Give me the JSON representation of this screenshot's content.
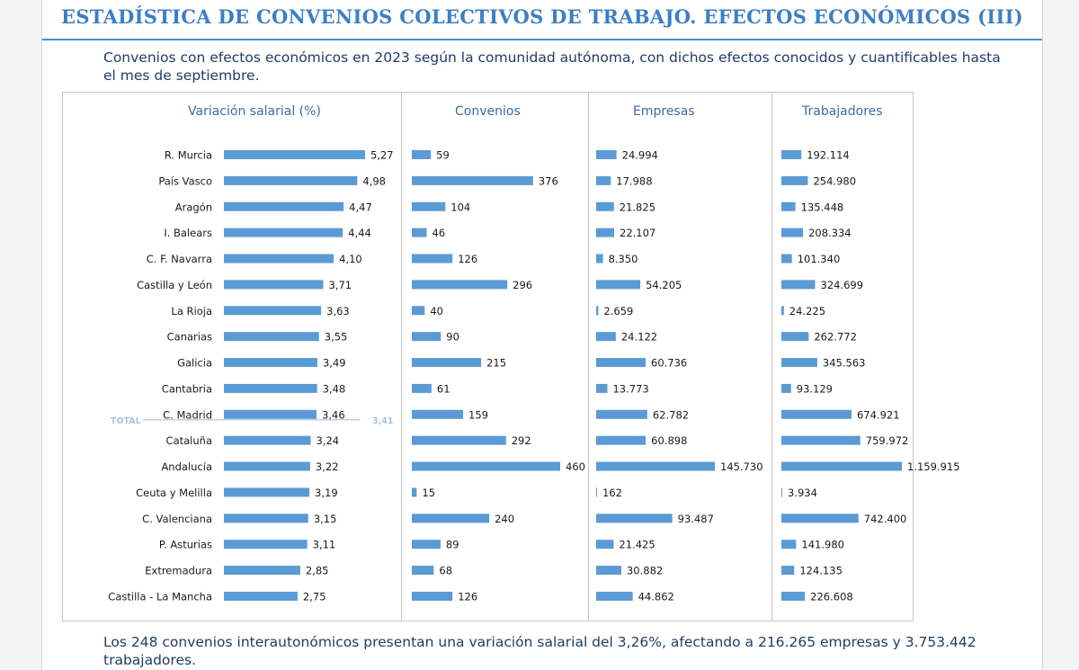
{
  "header": {
    "title": "ESTADÍSTICA DE CONVENIOS COLECTIVOS DE TRABAJO. EFECTOS ECONÓMICOS (III)",
    "subtitle": "Convenios con efectos económicos en 2023 según la comunidad autónoma, con dichos efectos conocidos y cuantificables hasta el mes de septiembre."
  },
  "footnote": "Los 248 convenios interautonómicos presentan una variación salarial del 3,26%, afectando a 216.265 empresas y 3.753.442 trabajadores.",
  "colors": {
    "bar": "#5b9bd5",
    "title": "#3b7fc4",
    "panel_title": "#3b6d9e",
    "total_line": "#a9c4e0",
    "text": "#1f3d66"
  },
  "chart_data": {
    "type": "bar",
    "orientation": "horizontal",
    "grid": false,
    "categories": [
      "R. Murcia",
      "País Vasco",
      "Aragón",
      "I. Balears",
      "C. F. Navarra",
      "Castilla y León",
      "La Rioja",
      "Canarias",
      "Galicia",
      "Cantabria",
      "C. Madrid",
      "Cataluña",
      "Andalucía",
      "Ceuta y Melilla",
      "C. Valenciana",
      "P. Asturias",
      "Extremadura",
      "Castilla - La Mancha"
    ],
    "series": [
      {
        "name": "Variación salarial (%)",
        "values": [
          5.27,
          4.98,
          4.47,
          4.44,
          4.1,
          3.71,
          3.63,
          3.55,
          3.49,
          3.48,
          3.46,
          3.24,
          3.22,
          3.19,
          3.15,
          3.11,
          2.85,
          2.75
        ],
        "labels": [
          "5,27",
          "4,98",
          "4,47",
          "4,44",
          "4,10",
          "3,71",
          "3,63",
          "3,55",
          "3,49",
          "3,48",
          "3,46",
          "3,24",
          "3,22",
          "3,19",
          "3,15",
          "3,11",
          "2,85",
          "2,75"
        ]
      },
      {
        "name": "Convenios",
        "values": [
          59,
          376,
          104,
          46,
          126,
          296,
          40,
          90,
          215,
          61,
          159,
          292,
          460,
          15,
          240,
          89,
          68,
          126
        ],
        "labels": [
          "59",
          "376",
          "104",
          "46",
          "126",
          "296",
          "40",
          "90",
          "215",
          "61",
          "159",
          "292",
          "460",
          "15",
          "240",
          "89",
          "68",
          "126"
        ]
      },
      {
        "name": "Empresas",
        "values": [
          24994,
          17988,
          21825,
          22107,
          8350,
          54205,
          2659,
          24122,
          60736,
          13773,
          62782,
          60898,
          145730,
          162,
          93487,
          21425,
          30882,
          44862
        ],
        "labels": [
          "24.994",
          "17.988",
          "21.825",
          "22.107",
          "8.350",
          "54.205",
          "2.659",
          "24.122",
          "60.736",
          "13.773",
          "62.782",
          "60.898",
          "145.730",
          "162",
          "93.487",
          "21.425",
          "30.882",
          "44.862"
        ]
      },
      {
        "name": "Trabajadores",
        "values": [
          192114,
          254980,
          135448,
          208334,
          101340,
          324699,
          24225,
          262772,
          345563,
          93129,
          674921,
          759972,
          1159915,
          3934,
          742400,
          141980,
          124135,
          226608
        ],
        "labels": [
          "192.114",
          "254.980",
          "135.448",
          "208.334",
          "101.340",
          "324.699",
          "24.225",
          "262.772",
          "345.563",
          "93.129",
          "674.921",
          "759.972",
          "1.159.915",
          "3.934",
          "742.400",
          "141.980",
          "124.135",
          "226.608"
        ]
      }
    ],
    "reference_line": {
      "series": "Variación salarial (%)",
      "label": "TOTAL",
      "value": 3.41,
      "value_label": "3,41"
    }
  }
}
